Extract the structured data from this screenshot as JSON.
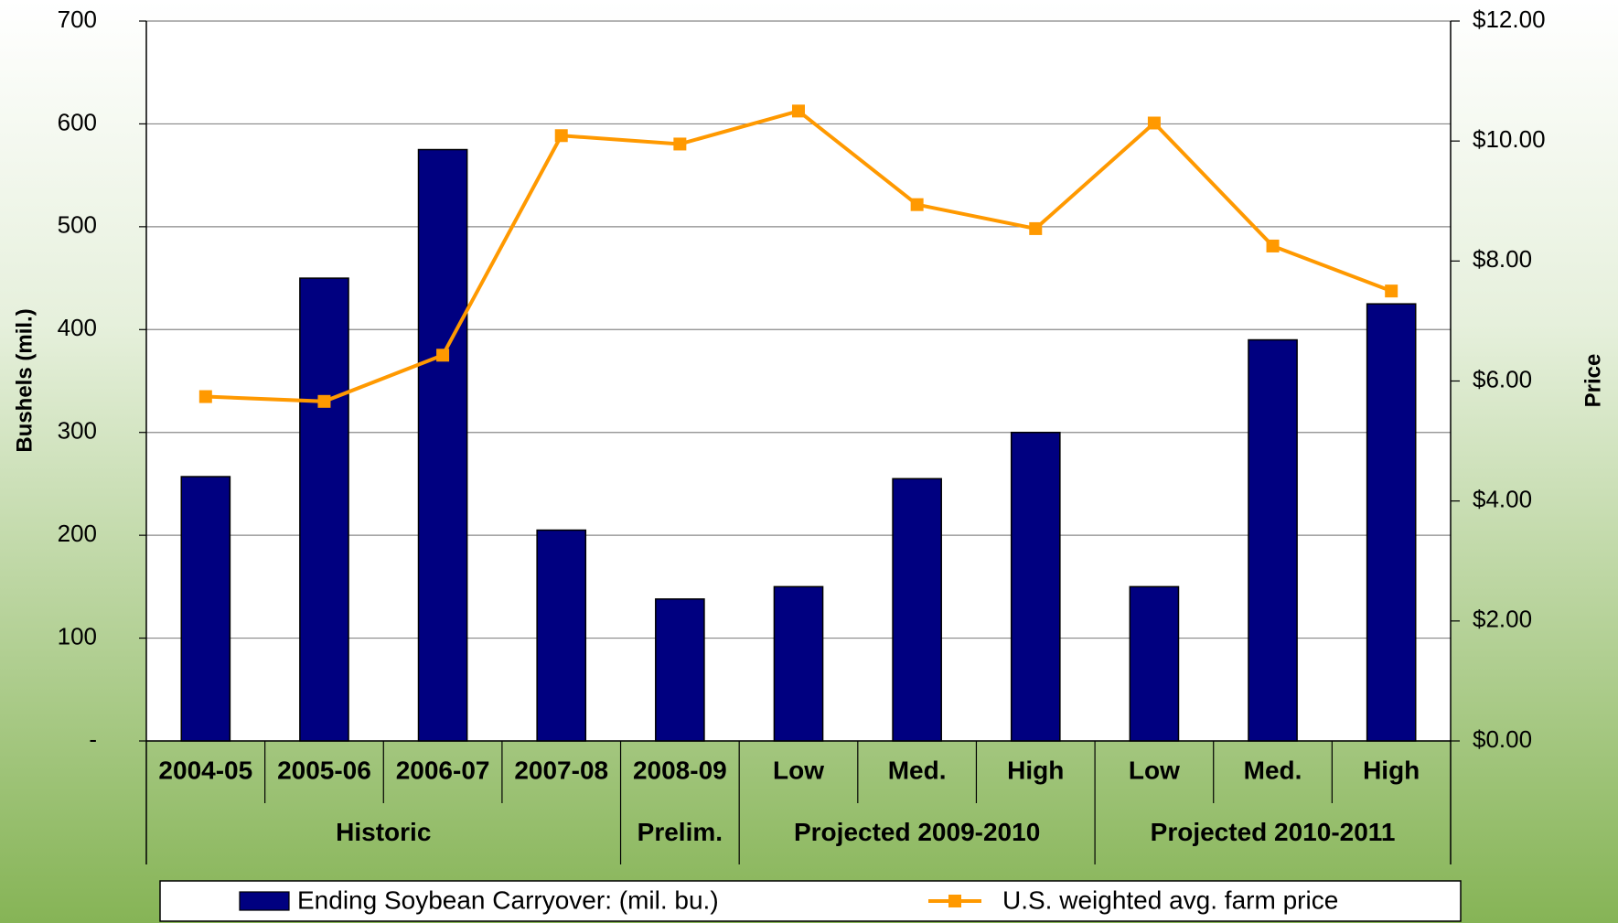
{
  "chart_data": {
    "type": "bar-line",
    "y_label": "Bushels (mil.)",
    "y2_label": "Price",
    "groups": [
      {
        "name": "Historic",
        "categories": [
          "2004-05",
          "2005-06",
          "2006-07",
          "2007-08"
        ]
      },
      {
        "name": "Prelim.",
        "categories": [
          "2008-09"
        ]
      },
      {
        "name": "Projected 2009-2010",
        "categories": [
          "Low",
          "Med.",
          "High"
        ]
      },
      {
        "name": "Projected 2010-2011",
        "categories": [
          "Low",
          "Med.",
          "High"
        ]
      }
    ],
    "series": [
      {
        "name": "Ending Soybean Carryover: (mil. bu.)",
        "type": "bar",
        "color": "#000080",
        "values": [
          257,
          450,
          575,
          205,
          138,
          150,
          255,
          300,
          150,
          390,
          425
        ]
      },
      {
        "name": "U.S. weighted avg. farm price",
        "type": "line",
        "axis": "y2",
        "color": "#ff9900",
        "values": [
          5.74,
          5.66,
          6.43,
          10.09,
          9.95,
          10.5,
          8.94,
          8.54,
          10.3,
          8.25,
          7.5
        ]
      }
    ],
    "ylim": [
      0,
      700
    ],
    "yticks": [
      {
        "value": 0,
        "label": "-"
      },
      100,
      200,
      300,
      400,
      500,
      600,
      700
    ],
    "y2lim": [
      0,
      12
    ],
    "y2ticks": [
      {
        "value": 0,
        "label": "$0.00"
      },
      {
        "value": 2,
        "label": "$2.00"
      },
      {
        "value": 4,
        "label": "$4.00"
      },
      {
        "value": 6,
        "label": "$6.00"
      },
      {
        "value": 8,
        "label": "$8.00"
      },
      {
        "value": 10,
        "label": "$10.00"
      },
      {
        "value": 12,
        "label": "$12.00"
      }
    ],
    "grid": true
  }
}
